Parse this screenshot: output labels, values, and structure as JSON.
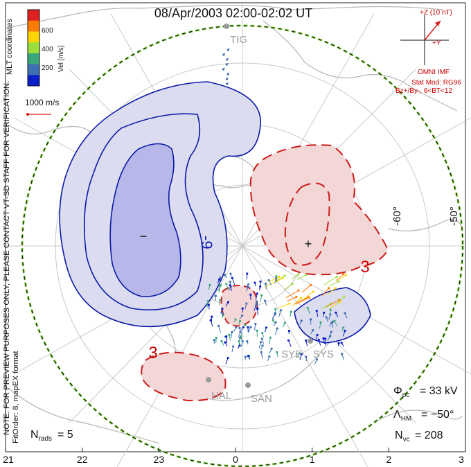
{
  "title": "08/Apr/2003 02:00-02:02 UT",
  "colorbar": {
    "label": "Vel [m/s]",
    "ticks": [
      "600",
      "400",
      "200"
    ],
    "colors": [
      "#e02020",
      "#ff7a00",
      "#ffd400",
      "#9be03a",
      "#3aa77a",
      "#3f6fb3",
      "#0a1ec8"
    ]
  },
  "coord_label": "MLT coordinates",
  "side_note": "NOTE: FOR PREVIEW PURPOSES ONLY, PLEASE CONTACT VT-SD STAFF FOR VERIFICATION.",
  "fit_note": "FitOrder: 8, mapEX format",
  "vector_scale": "1000 m/s",
  "imf": {
    "bz_label": "+Z (10 nT)",
    "by_label": "+Y",
    "source": "OMNI IMF",
    "model": "Stat Mod: RG96",
    "condition": "Bz+/By-, 6<BT<12"
  },
  "lat_labels": [
    "-60°",
    "-50°"
  ],
  "contour_labels": [
    "-9",
    "3",
    "3"
  ],
  "markers": {
    "min": "−",
    "max": "+"
  },
  "stations": [
    "TIG",
    "SYE",
    "SYS",
    "HAL",
    "SAN"
  ],
  "stats": {
    "phi_pc": "33 kV",
    "lambda_hm": "−50°",
    "n_vc": "208",
    "n_rads": "5"
  },
  "mlt_ticks": [
    "21",
    "22",
    "23",
    "0",
    "1",
    "2",
    "3"
  ],
  "colors": {
    "negative_fill": "#dcdcf0",
    "negative_line": "#0a1aa8",
    "positive_fill": "#f3d6d6",
    "positive_line": "#cc1a1a",
    "hmb": "#7fd63a"
  }
}
